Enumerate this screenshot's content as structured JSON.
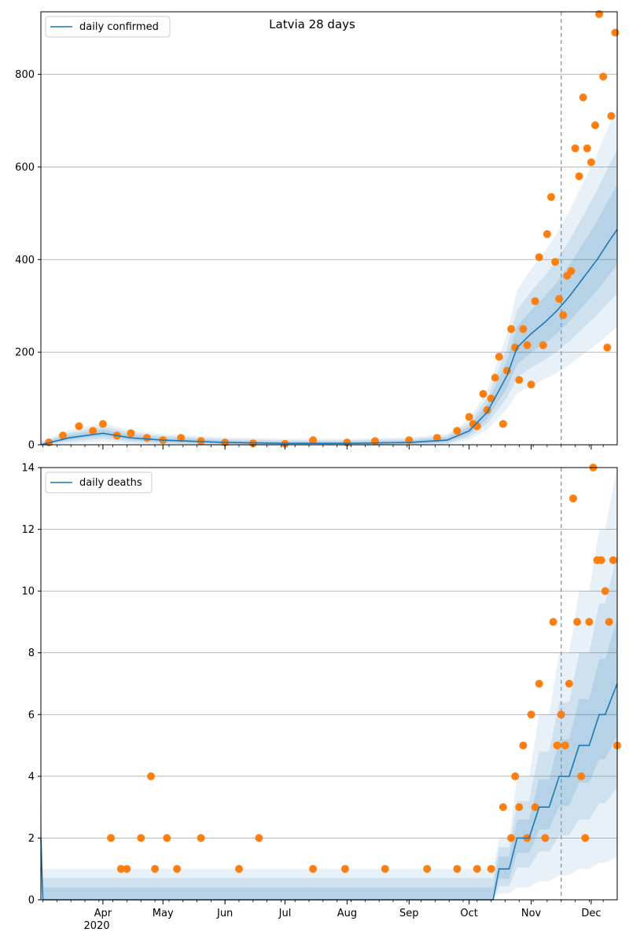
{
  "chart_data": [
    {
      "type": "line",
      "title": "Latvia 28 days",
      "legend": {
        "label": "daily confirmed",
        "placement": "top-left"
      },
      "ylim": [
        0,
        935
      ],
      "yticks": [
        0,
        200,
        400,
        600,
        800
      ],
      "grid": "y",
      "x_start": "2020-03-01",
      "x_end": "2020-12-14",
      "forecast_start": "2020-11-16",
      "colors": {
        "line": "#1f77b4",
        "points": "#ff7f0e",
        "band": "#1f77b4"
      },
      "series": [
        {
          "name": "daily confirmed",
          "kind": "line",
          "x": [
            "2020-03-01",
            "2020-03-15",
            "2020-04-01",
            "2020-04-15",
            "2020-05-01",
            "2020-06-01",
            "2020-07-01",
            "2020-08-01",
            "2020-09-01",
            "2020-09-20",
            "2020-10-01",
            "2020-10-10",
            "2020-10-20",
            "2020-10-25",
            "2020-11-01",
            "2020-11-08",
            "2020-11-14",
            "2020-11-20",
            "2020-11-27",
            "2020-12-04",
            "2020-12-10",
            "2020-12-14"
          ],
          "y": [
            0,
            15,
            25,
            15,
            10,
            5,
            3,
            3,
            5,
            10,
            30,
            70,
            150,
            210,
            240,
            265,
            290,
            320,
            360,
            400,
            440,
            465
          ]
        },
        {
          "name": "observed",
          "kind": "scatter",
          "x": [
            "2020-03-05",
            "2020-03-12",
            "2020-03-20",
            "2020-03-27",
            "2020-04-01",
            "2020-04-08",
            "2020-04-15",
            "2020-04-23",
            "2020-05-01",
            "2020-05-10",
            "2020-05-20",
            "2020-06-01",
            "2020-06-15",
            "2020-07-01",
            "2020-07-15",
            "2020-08-01",
            "2020-08-15",
            "2020-09-01",
            "2020-09-15",
            "2020-09-25",
            "2020-10-01",
            "2020-10-03",
            "2020-10-05",
            "2020-10-08",
            "2020-10-10",
            "2020-10-12",
            "2020-10-14",
            "2020-10-16",
            "2020-10-18",
            "2020-10-20",
            "2020-10-22",
            "2020-10-24",
            "2020-10-26",
            "2020-10-28",
            "2020-10-30",
            "2020-11-01",
            "2020-11-03",
            "2020-11-05",
            "2020-11-07",
            "2020-11-09",
            "2020-11-11",
            "2020-11-13",
            "2020-11-15",
            "2020-11-17",
            "2020-11-19",
            "2020-11-21",
            "2020-11-23",
            "2020-11-25",
            "2020-11-27",
            "2020-11-29",
            "2020-12-01",
            "2020-12-03",
            "2020-12-05",
            "2020-12-07",
            "2020-12-09",
            "2020-12-11",
            "2020-12-13"
          ],
          "y": [
            5,
            20,
            40,
            30,
            45,
            20,
            25,
            15,
            10,
            15,
            8,
            5,
            3,
            2,
            10,
            5,
            8,
            10,
            15,
            30,
            60,
            45,
            40,
            110,
            75,
            100,
            145,
            190,
            45,
            160,
            250,
            210,
            140,
            250,
            215,
            130,
            310,
            405,
            215,
            455,
            535,
            395,
            315,
            280,
            365,
            375,
            640,
            580,
            750,
            640,
            610,
            690,
            930,
            795,
            210,
            710,
            890
          ]
        }
      ]
    },
    {
      "type": "line",
      "legend": {
        "label": "daily deaths",
        "placement": "top-left"
      },
      "ylim": [
        0,
        14
      ],
      "yticks": [
        0,
        2,
        4,
        6,
        8,
        10,
        12,
        14
      ],
      "grid": "y",
      "x_start": "2020-03-01",
      "x_end": "2020-12-14",
      "forecast_start": "2020-11-16",
      "xticks": [
        "Apr",
        "May",
        "Jun",
        "Jul",
        "Aug",
        "Sep",
        "Oct",
        "Nov",
        "Dec"
      ],
      "xticks_dates": [
        "2020-04-01",
        "2020-05-01",
        "2020-06-01",
        "2020-07-01",
        "2020-08-01",
        "2020-09-01",
        "2020-10-01",
        "2020-11-01",
        "2020-12-01"
      ],
      "year_label": "2020",
      "colors": {
        "line": "#1f77b4",
        "points": "#ff7f0e",
        "band": "#1f77b4"
      },
      "series": [
        {
          "name": "daily deaths",
          "kind": "line",
          "x": [
            "2020-03-01",
            "2020-03-02",
            "2020-10-13",
            "2020-10-16",
            "2020-10-21",
            "2020-10-25",
            "2020-10-31",
            "2020-11-05",
            "2020-11-10",
            "2020-11-15",
            "2020-11-20",
            "2020-11-25",
            "2020-11-30",
            "2020-12-05",
            "2020-12-08",
            "2020-12-14"
          ],
          "y": [
            2,
            0,
            0,
            1,
            1,
            2,
            2,
            3,
            3,
            4,
            4,
            5,
            5,
            6,
            6,
            7
          ]
        },
        {
          "name": "observed",
          "kind": "scatter",
          "x": [
            "2020-04-05",
            "2020-04-10",
            "2020-04-13",
            "2020-04-20",
            "2020-04-25",
            "2020-04-27",
            "2020-05-03",
            "2020-05-08",
            "2020-05-20",
            "2020-06-08",
            "2020-06-18",
            "2020-07-15",
            "2020-07-31",
            "2020-08-20",
            "2020-09-10",
            "2020-09-25",
            "2020-10-05",
            "2020-10-12",
            "2020-10-18",
            "2020-10-22",
            "2020-10-24",
            "2020-10-26",
            "2020-10-28",
            "2020-10-30",
            "2020-11-01",
            "2020-11-03",
            "2020-11-05",
            "2020-11-08",
            "2020-11-12",
            "2020-11-14",
            "2020-11-16",
            "2020-11-18",
            "2020-11-20",
            "2020-11-22",
            "2020-11-24",
            "2020-11-26",
            "2020-11-28",
            "2020-11-30",
            "2020-12-02",
            "2020-12-04",
            "2020-12-06",
            "2020-12-08",
            "2020-12-10",
            "2020-12-12",
            "2020-12-14"
          ],
          "y": [
            2,
            1,
            1,
            2,
            4,
            1,
            2,
            1,
            2,
            1,
            2,
            1,
            1,
            1,
            1,
            1,
            1,
            1,
            3,
            2,
            4,
            3,
            5,
            2,
            6,
            3,
            7,
            2,
            9,
            5,
            6,
            5,
            7,
            13,
            9,
            4,
            2,
            9,
            14,
            11,
            11,
            10,
            9,
            11,
            5
          ]
        }
      ]
    }
  ]
}
